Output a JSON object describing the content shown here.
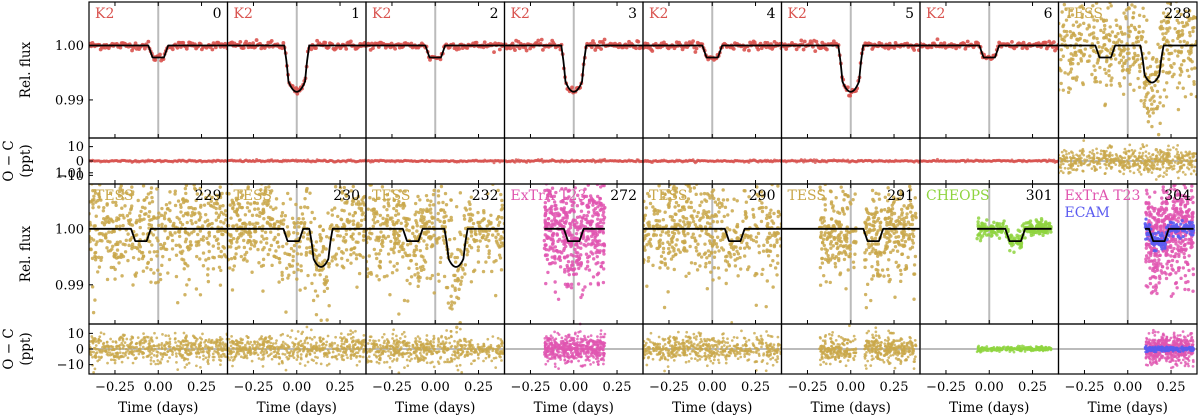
{
  "chart_data": {
    "type": "scatter",
    "description_layout": "2 rows x 8 columns of transit light curves, each with a residual (O - C) subpanel",
    "xlabel": "Time (days)",
    "ylabel_flux": "Rel. flux",
    "ylabel_resid_line1": "O − C",
    "ylabel_resid_line2": "(ppt)",
    "xlim": [
      -0.4,
      0.4
    ],
    "xticks": [
      -0.25,
      0.0,
      0.25
    ],
    "xtick_labels": [
      "−0.25",
      "0.00",
      "0.25"
    ],
    "flux_ylim": [
      0.983,
      1.008
    ],
    "flux_yticks": [
      0.99,
      1.0,
      1.01
    ],
    "flux_ytick_labels": [
      "0.99",
      "1.00",
      "1.01"
    ],
    "resid_ylim": [
      -16,
      16
    ],
    "resid_yticks": [
      -10,
      0,
      10
    ],
    "resid_ytick_labels": [
      "−10",
      "0",
      "10"
    ],
    "colors": {
      "K2": "#d9534f",
      "TESS": "#c9a74a",
      "ExTrA T23": "#e055b0",
      "CHEOPS": "#8fd43f",
      "ECAM": "#5b5bf0",
      "model": "#000000",
      "vline": "#bbbbbb"
    },
    "panels": [
      {
        "epoch": "0",
        "instruments": [
          "K2"
        ],
        "transits": [
          {
            "t0": 0.0,
            "depth": 0.0022,
            "hw": 0.045
          }
        ],
        "noise": 0.00035,
        "range": [
          -0.4,
          0.4
        ]
      },
      {
        "epoch": "1",
        "instruments": [
          "K2"
        ],
        "transits": [
          {
            "t0": 0.0,
            "depth": 0.0085,
            "hw": 0.06
          }
        ],
        "noise": 0.0004,
        "range": [
          -0.4,
          0.4
        ]
      },
      {
        "epoch": "2",
        "instruments": [
          "K2"
        ],
        "transits": [
          {
            "t0": 0.0,
            "depth": 0.0022,
            "hw": 0.045
          }
        ],
        "noise": 0.00035,
        "range": [
          -0.4,
          0.4
        ]
      },
      {
        "epoch": "3",
        "instruments": [
          "K2"
        ],
        "transits": [
          {
            "t0": 0.0,
            "depth": 0.0085,
            "hw": 0.06
          }
        ],
        "noise": 0.0004,
        "range": [
          -0.4,
          0.4
        ]
      },
      {
        "epoch": "4",
        "instruments": [
          "K2"
        ],
        "transits": [
          {
            "t0": 0.0,
            "depth": 0.0022,
            "hw": 0.045
          }
        ],
        "noise": 0.00035,
        "range": [
          -0.4,
          0.4
        ]
      },
      {
        "epoch": "5",
        "instruments": [
          "K2"
        ],
        "transits": [
          {
            "t0": 0.0,
            "depth": 0.0085,
            "hw": 0.06
          }
        ],
        "noise": 0.0004,
        "range": [
          -0.4,
          0.4
        ]
      },
      {
        "epoch": "6",
        "instruments": [
          "K2"
        ],
        "transits": [
          {
            "t0": 0.0,
            "depth": 0.0022,
            "hw": 0.045
          }
        ],
        "noise": 0.00035,
        "range": [
          -0.4,
          0.4
        ]
      },
      {
        "epoch": "228",
        "instruments": [
          "TESS"
        ],
        "transits": [
          {
            "t0": -0.13,
            "depth": 0.0022,
            "hw": 0.045
          },
          {
            "t0": 0.14,
            "depth": 0.0068,
            "hw": 0.055
          }
        ],
        "noise": 0.0045,
        "range": [
          -0.4,
          0.4
        ]
      },
      {
        "epoch": "229",
        "instruments": [
          "TESS"
        ],
        "transits": [
          {
            "t0": -0.1,
            "depth": 0.0022,
            "hw": 0.045
          }
        ],
        "noise": 0.0045,
        "range": [
          -0.4,
          0.4
        ]
      },
      {
        "epoch": "230",
        "instruments": [
          "TESS"
        ],
        "transits": [
          {
            "t0": -0.02,
            "depth": 0.0022,
            "hw": 0.045
          },
          {
            "t0": 0.14,
            "depth": 0.0068,
            "hw": 0.055
          }
        ],
        "noise": 0.0045,
        "range": [
          -0.4,
          0.4
        ]
      },
      {
        "epoch": "232",
        "instruments": [
          "TESS"
        ],
        "transits": [
          {
            "t0": -0.13,
            "depth": 0.0022,
            "hw": 0.045
          },
          {
            "t0": 0.12,
            "depth": 0.0068,
            "hw": 0.055
          }
        ],
        "noise": 0.0045,
        "range": [
          -0.4,
          0.4
        ]
      },
      {
        "epoch": "272",
        "instruments": [
          "ExTrA T23"
        ],
        "transits": [
          {
            "t0": 0.0,
            "depth": 0.0022,
            "hw": 0.045
          }
        ],
        "noise": 0.0045,
        "range": [
          -0.17,
          0.18
        ]
      },
      {
        "epoch": "290",
        "instruments": [
          "TESS"
        ],
        "transits": [
          {
            "t0": 0.13,
            "depth": 0.0022,
            "hw": 0.045
          }
        ],
        "noise": 0.0045,
        "range": [
          -0.4,
          0.4
        ]
      },
      {
        "epoch": "291",
        "instruments": [
          "TESS"
        ],
        "transits": [
          {
            "t0": 0.13,
            "depth": 0.0022,
            "hw": 0.045
          }
        ],
        "noise": 0.0045,
        "range": [
          -0.18,
          0.38
        ],
        "gap": [
          0.03,
          0.08
        ]
      },
      {
        "epoch": "301",
        "instruments": [
          "CHEOPS"
        ],
        "transits": [
          {
            "t0": 0.15,
            "depth": 0.0022,
            "hw": 0.045
          }
        ],
        "noise": 0.0007,
        "range": [
          -0.07,
          0.36
        ]
      },
      {
        "epoch": "304",
        "instruments": [
          "ExTrA T23",
          "ECAM"
        ],
        "transits": [
          {
            "t0": 0.18,
            "depth": 0.0022,
            "hw": 0.045
          }
        ],
        "noise": 0.0045,
        "range": [
          0.1,
          0.38
        ],
        "noise2": 0.0008
      }
    ]
  }
}
